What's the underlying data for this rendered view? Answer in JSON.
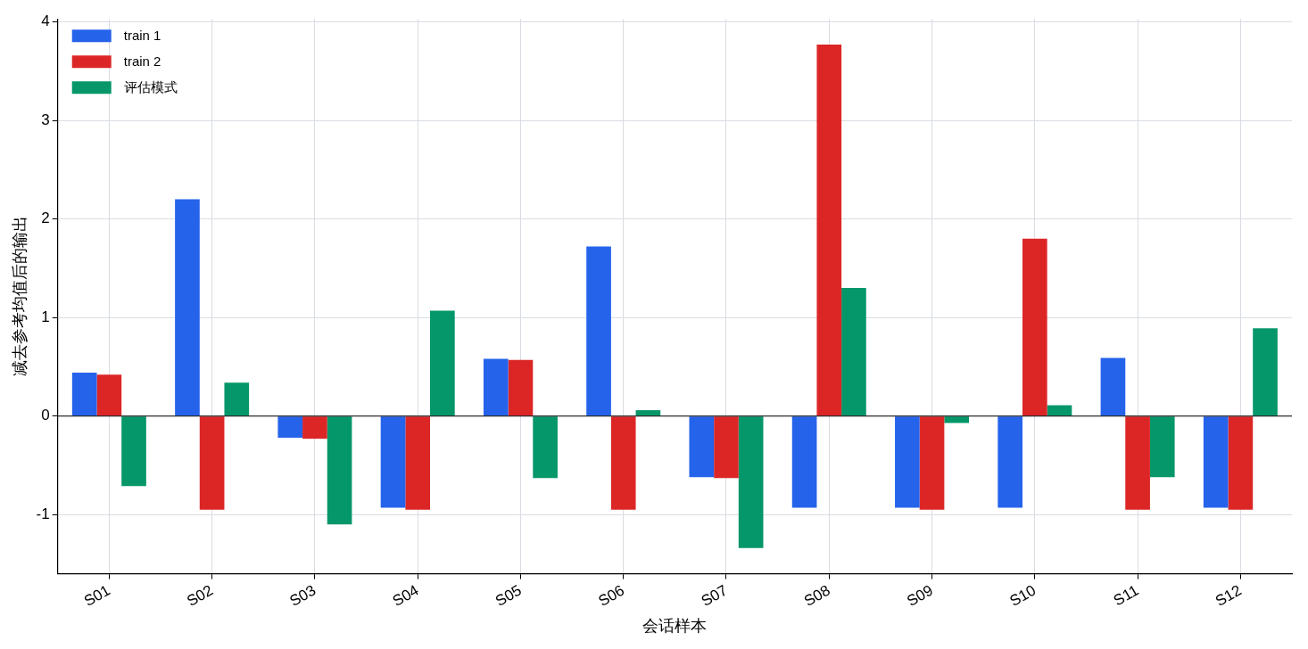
{
  "chart_data": {
    "type": "bar",
    "xlabel": "会话样本",
    "ylabel": "减去参考均值后的输出",
    "categories": [
      "S01",
      "S02",
      "S03",
      "S04",
      "S05",
      "S06",
      "S07",
      "S08",
      "S09",
      "S10",
      "S11",
      "S12"
    ],
    "series": [
      {
        "name": "train 1",
        "color": "#2563eb",
        "values": [
          0.44,
          2.2,
          -0.22,
          -0.93,
          0.58,
          1.72,
          -0.62,
          -0.93,
          -0.93,
          -0.93,
          0.59,
          -0.93
        ]
      },
      {
        "name": "train 2",
        "color": "#dc2626",
        "values": [
          0.42,
          -0.95,
          -0.23,
          -0.95,
          0.57,
          -0.95,
          -0.63,
          3.77,
          -0.95,
          1.8,
          -0.95,
          -0.95
        ]
      },
      {
        "name": "评估模式",
        "color": "#059669",
        "values": [
          -0.71,
          0.34,
          -1.1,
          1.07,
          -0.63,
          0.06,
          -1.34,
          1.3,
          -0.07,
          0.11,
          -0.62,
          0.89
        ]
      }
    ],
    "ylim": [
      -1.6,
      4.03
    ],
    "yticks": [
      -1,
      0,
      1,
      2,
      3,
      4
    ],
    "grid": true,
    "legend": "top left",
    "ref_lines": [
      {
        "axis": "y",
        "value": 0,
        "color": "#000000"
      }
    ]
  }
}
